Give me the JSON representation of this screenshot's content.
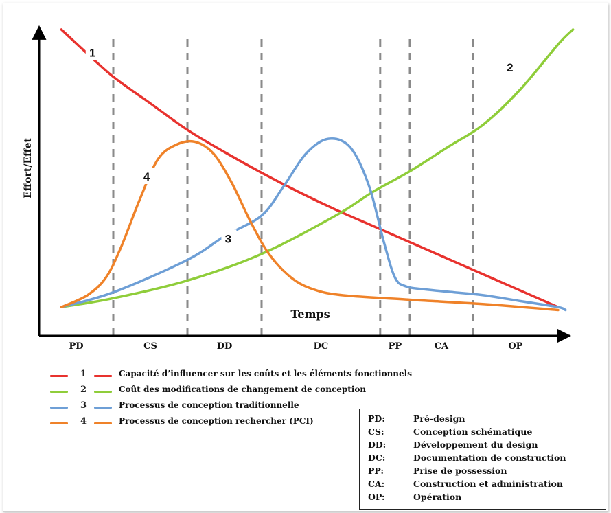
{
  "chart_data": {
    "type": "line",
    "ylabel": "Effort/Effet",
    "xlabel": "Temps",
    "phases": [
      "PD",
      "CS",
      "DD",
      "DC",
      "PP",
      "CA",
      "OP"
    ],
    "phase_boundaries": [
      1.0,
      2.0,
      3.0,
      4.6,
      5.0,
      5.85
    ],
    "xlim": [
      0,
      7
    ],
    "ylim": [
      0,
      1
    ],
    "grid": false,
    "series": [
      {
        "name": "Capacité d'influencer sur les coûts et les éléments fonctionnels",
        "number": "1",
        "color": "#e8322e",
        "x": [
          0.3,
          0.6,
          1.0,
          1.5,
          2.0,
          2.5,
          3.0,
          3.5,
          4.0,
          4.5,
          5.0,
          5.5,
          6.0,
          6.5,
          7.0
        ],
        "y": [
          1.0,
          0.93,
          0.84,
          0.75,
          0.66,
          0.585,
          0.515,
          0.45,
          0.39,
          0.335,
          0.28,
          0.225,
          0.17,
          0.115,
          0.06
        ]
      },
      {
        "name": "Coût des modifications de changement de conception",
        "number": "2",
        "color": "#8fcd3a",
        "x": [
          0.3,
          1.0,
          2.0,
          3.0,
          4.0,
          4.5,
          5.0,
          5.5,
          6.0,
          6.5,
          7.0,
          7.2
        ],
        "y": [
          0.06,
          0.09,
          0.15,
          0.24,
          0.37,
          0.45,
          0.52,
          0.6,
          0.68,
          0.8,
          0.95,
          1.0
        ]
      },
      {
        "name": "Processus de conception traditionnelle",
        "number": "3",
        "color": "#6e9fd6",
        "x": [
          0.3,
          1.0,
          2.0,
          2.5,
          3.0,
          3.3,
          3.6,
          3.9,
          4.2,
          4.45,
          4.65,
          4.8,
          4.95,
          5.2,
          5.6,
          6.0,
          6.5,
          7.0,
          7.1
        ],
        "y": [
          0.06,
          0.11,
          0.22,
          0.3,
          0.37,
          0.47,
          0.58,
          0.63,
          0.6,
          0.47,
          0.28,
          0.16,
          0.13,
          0.12,
          0.11,
          0.1,
          0.08,
          0.06,
          0.05
        ]
      },
      {
        "name": "Processus de conception rechercher (PCI)",
        "number": "4",
        "color": "#ef8229",
        "x": [
          0.3,
          0.65,
          0.9,
          1.1,
          1.35,
          1.6,
          1.85,
          2.1,
          2.35,
          2.6,
          2.85,
          3.1,
          3.4,
          3.7,
          4.1,
          5.0,
          6.0,
          7.0
        ],
        "y": [
          0.06,
          0.1,
          0.16,
          0.26,
          0.42,
          0.56,
          0.61,
          0.62,
          0.58,
          0.48,
          0.35,
          0.24,
          0.16,
          0.12,
          0.1,
          0.085,
          0.07,
          0.05
        ]
      }
    ],
    "annotations": [
      "1",
      "2",
      "3",
      "4"
    ]
  },
  "legend": [
    {
      "number": "1",
      "label": "Capacité d’influencer sur les coûts et les éléments fonctionnels",
      "color": "#e8322e"
    },
    {
      "number": "2",
      "label": "Coût des modifications de changement de conception",
      "color": "#8fcd3a"
    },
    {
      "number": "3",
      "label": "Processus de conception traditionnelle",
      "color": "#6e9fd6"
    },
    {
      "number": "4",
      "label": "Processus de conception rechercher (PCI)",
      "color": "#ef8229"
    }
  ],
  "abbreviations": [
    {
      "code": "PD:",
      "desc": "Pré-design"
    },
    {
      "code": "CS:",
      "desc": "Conception schématique"
    },
    {
      "code": "DD:",
      "desc": "Développement du design"
    },
    {
      "code": "DC:",
      "desc": "Documentation de construction"
    },
    {
      "code": "PP:",
      "desc": "Prise de possession"
    },
    {
      "code": "CA:",
      "desc": "Construction et administration"
    },
    {
      "code": "OP:",
      "desc": "Opération"
    }
  ]
}
